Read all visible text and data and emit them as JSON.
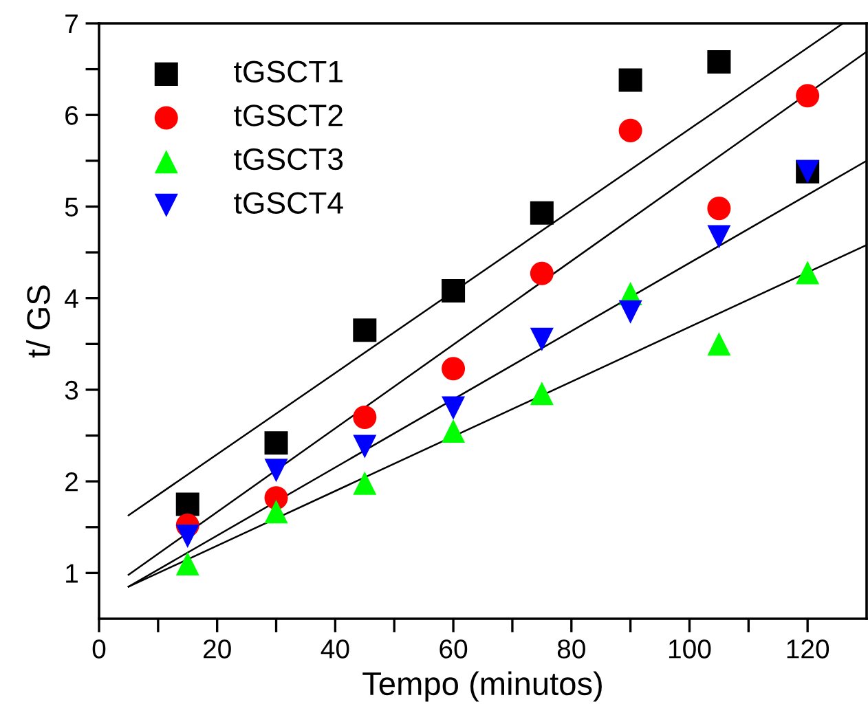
{
  "chart_data": {
    "type": "scatter",
    "xlabel": "Tempo (minutos)",
    "ylabel": "t/ GS",
    "x": [
      15,
      30,
      45,
      60,
      75,
      90,
      105,
      120
    ],
    "series": [
      {
        "name": "tGSCT1",
        "color": "#000000",
        "marker": "square",
        "values": [
          1.75,
          2.42,
          3.65,
          4.08,
          4.93,
          6.38,
          6.58,
          5.38
        ]
      },
      {
        "name": "tGSCT2",
        "color": "#ff0000",
        "marker": "circle",
        "values": [
          1.52,
          1.82,
          2.7,
          3.23,
          4.27,
          5.83,
          4.98,
          6.21
        ]
      },
      {
        "name": "tGSCT3",
        "color": "#00ff00",
        "marker": "triangle",
        "values": [
          1.1,
          1.67,
          1.98,
          2.55,
          2.96,
          4.05,
          3.5,
          4.28
        ]
      },
      {
        "name": "tGSCT4",
        "color": "#0000ff",
        "marker": "triangle_down",
        "values": [
          1.4,
          2.12,
          2.38,
          2.8,
          3.55,
          3.85,
          4.67,
          5.38
        ]
      },
      {
        "type": "line",
        "color": "#000000",
        "x": [
          5,
          126
        ],
        "values": [
          1.63,
          7.0
        ]
      },
      {
        "type": "line",
        "color": "#000000",
        "x": [
          5,
          130
        ],
        "values": [
          0.98,
          6.69
        ]
      },
      {
        "type": "line",
        "color": "#000000",
        "x": [
          5,
          130
        ],
        "values": [
          0.85,
          5.5
        ]
      },
      {
        "type": "line",
        "color": "#000000",
        "x": [
          5,
          130
        ],
        "values": [
          0.85,
          4.58
        ]
      }
    ],
    "xlim": [
      0,
      130
    ],
    "xticks": [
      0,
      {
        "value": 10,
        "label": null
      },
      20,
      {
        "value": 30,
        "label": null
      },
      40,
      {
        "value": 50,
        "label": null
      },
      60,
      {
        "value": 70,
        "label": null
      },
      80,
      {
        "value": 90,
        "label": null
      },
      100,
      {
        "value": 110,
        "label": null
      },
      120
    ],
    "ylim": [
      0.5,
      7
    ],
    "yticks": [
      1,
      {
        "value": 1.5,
        "label": null
      },
      2,
      {
        "value": 2.5,
        "label": null
      },
      3,
      {
        "value": 3.5,
        "label": null
      },
      4,
      {
        "value": 4.5,
        "label": null
      },
      5,
      {
        "value": 5.5,
        "label": null
      },
      6,
      {
        "value": 6.5,
        "label": null
      },
      7
    ],
    "grid": false,
    "legend": "top left"
  }
}
